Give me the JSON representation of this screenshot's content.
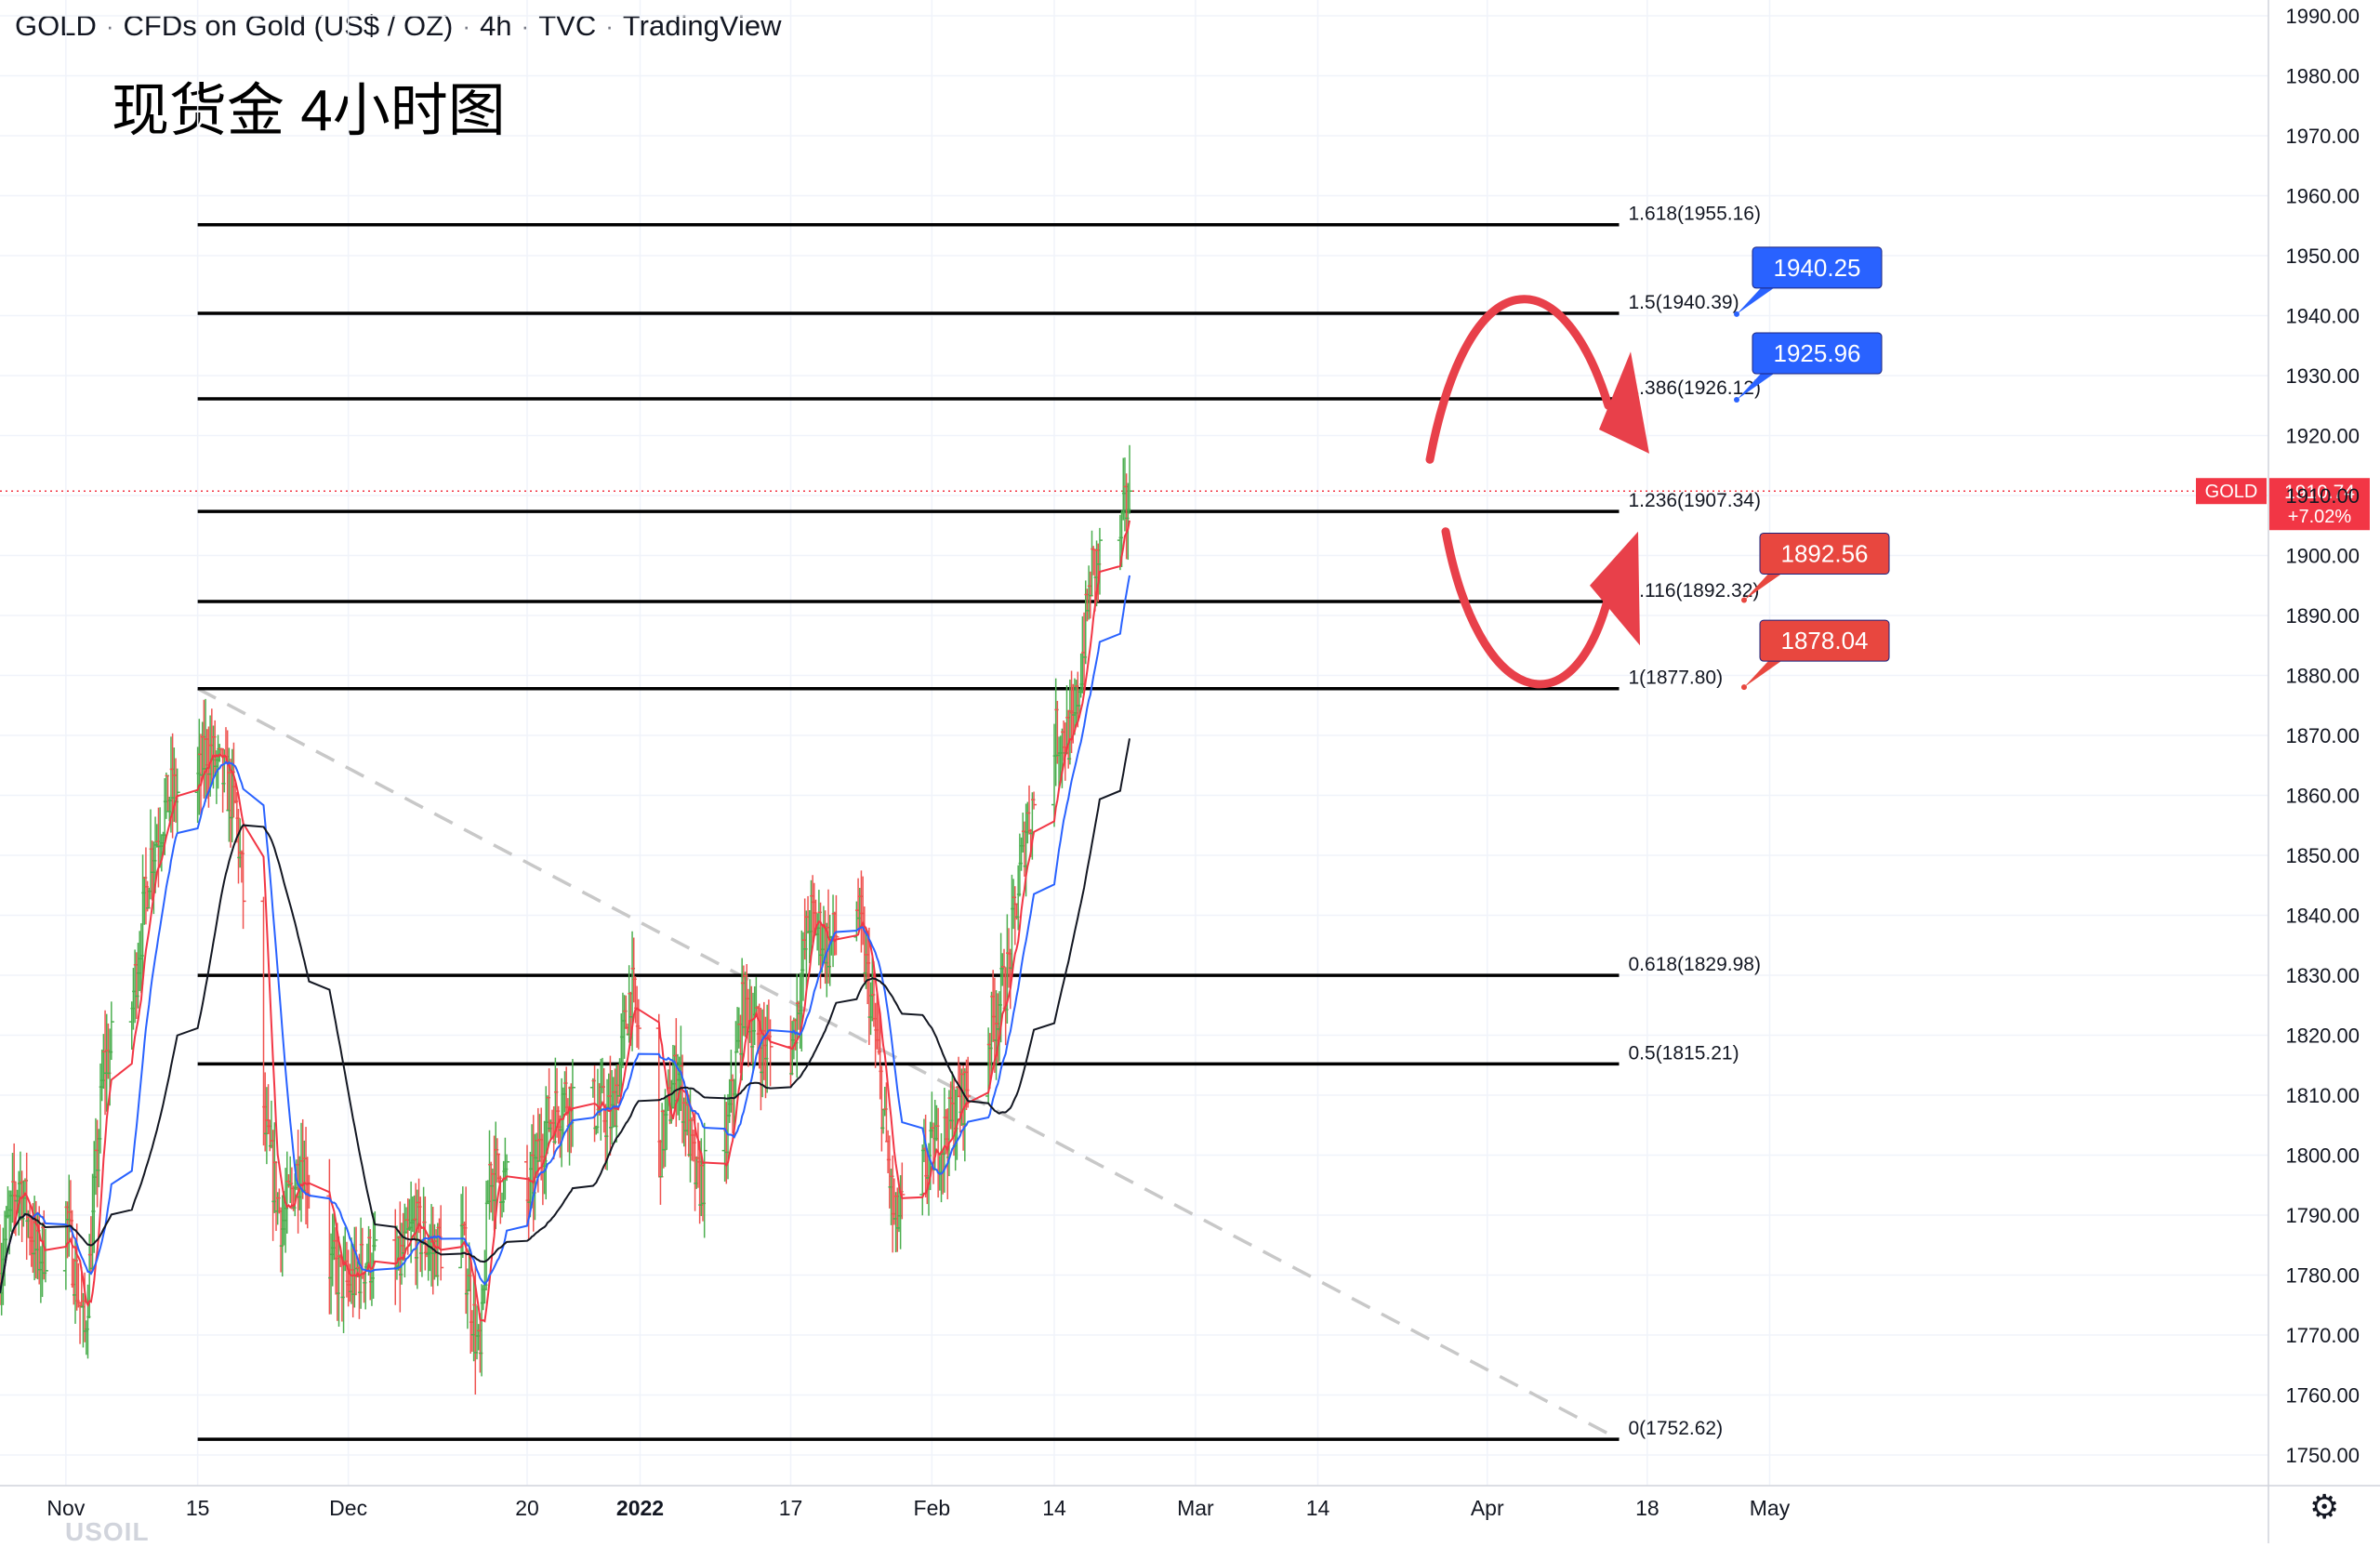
{
  "header": {
    "symbol": "GOLD",
    "description": "CFDs on Gold (US$ / OZ)",
    "interval": "4h",
    "exchange": "TVC",
    "source": "TradingView"
  },
  "chart_title": "现货金 4小时图",
  "watermark": "USOIL",
  "colors": {
    "up": "#26a69a",
    "bull_candle": "#4caf50",
    "bear_candle": "#ef5350",
    "ma_fast": "#2962ff",
    "ma_mid": "#f23645",
    "ma_slow": "#131722",
    "fib_line": "#000000",
    "trend_dashed": "#c8c8c8",
    "label_blue": "#2962ff",
    "label_red": "#e8473f",
    "arrow": "#e8404a",
    "price_tag": "#f23645"
  },
  "chart_data": {
    "type": "candlestick",
    "symbol": "GOLD",
    "timeframe": "4h",
    "ylim": [
      1745,
      1992
    ],
    "y_ticks": [
      "1990.00",
      "1980.00",
      "1970.00",
      "1960.00",
      "1950.00",
      "1940.00",
      "1930.00",
      "1920.00",
      "1910.00",
      "1900.00",
      "1890.00",
      "1880.00",
      "1870.00",
      "1860.00",
      "1850.00",
      "1840.00",
      "1830.00",
      "1820.00",
      "1810.00",
      "1800.00",
      "1790.00",
      "1780.00",
      "1770.00",
      "1760.00",
      "1750.00"
    ],
    "x_ticks": [
      {
        "label": "Nov",
        "bold": false
      },
      {
        "label": "15",
        "bold": false
      },
      {
        "label": "Dec",
        "bold": false
      },
      {
        "label": "20",
        "bold": false
      },
      {
        "label": "2022",
        "bold": true
      },
      {
        "label": "17",
        "bold": false
      },
      {
        "label": "Feb",
        "bold": false
      },
      {
        "label": "14",
        "bold": false
      },
      {
        "label": "Mar",
        "bold": false
      },
      {
        "label": "14",
        "bold": false
      },
      {
        "label": "Apr",
        "bold": false
      },
      {
        "label": "18",
        "bold": false
      },
      {
        "label": "May",
        "bold": false
      }
    ],
    "x_tick_dates": [
      "2021-11-01",
      "2021-11-15",
      "2021-12-01",
      "2021-12-20",
      "2022-01-01",
      "2022-01-17",
      "2022-02-01",
      "2022-02-14",
      "2022-03-01",
      "2022-03-14",
      "2022-04-01",
      "2022-04-18",
      "2022-05-01"
    ],
    "price_path": [
      [
        "2021-10-25",
        1782
      ],
      [
        "2021-10-27",
        1796
      ],
      [
        "2021-10-29",
        1783
      ],
      [
        "2021-11-01",
        1790
      ],
      [
        "2021-11-03",
        1770
      ],
      [
        "2021-11-05",
        1815
      ],
      [
        "2021-11-08",
        1825
      ],
      [
        "2021-11-10",
        1850
      ],
      [
        "2021-11-12",
        1860
      ],
      [
        "2021-11-15",
        1862
      ],
      [
        "2021-11-16",
        1868
      ],
      [
        "2021-11-18",
        1862
      ],
      [
        "2021-11-19",
        1858
      ],
      [
        "2021-11-22",
        1805
      ],
      [
        "2021-11-24",
        1788
      ],
      [
        "2021-11-26",
        1800
      ],
      [
        "2021-11-29",
        1782
      ],
      [
        "2021-12-01",
        1778
      ],
      [
        "2021-12-03",
        1783
      ],
      [
        "2021-12-06",
        1780
      ],
      [
        "2021-12-08",
        1788
      ],
      [
        "2021-12-10",
        1784
      ],
      [
        "2021-12-13",
        1787
      ],
      [
        "2021-12-15",
        1765
      ],
      [
        "2021-12-16",
        1798
      ],
      [
        "2021-12-20",
        1792
      ],
      [
        "2021-12-22",
        1805
      ],
      [
        "2021-12-24",
        1810
      ],
      [
        "2021-12-27",
        1808
      ],
      [
        "2021-12-29",
        1806
      ],
      [
        "2021-12-31",
        1828
      ],
      [
        "2022-01-03",
        1800
      ],
      [
        "2022-01-05",
        1815
      ],
      [
        "2022-01-07",
        1795
      ],
      [
        "2022-01-10",
        1800
      ],
      [
        "2022-01-12",
        1826
      ],
      [
        "2022-01-14",
        1818
      ],
      [
        "2022-01-17",
        1817
      ],
      [
        "2022-01-19",
        1840
      ],
      [
        "2022-01-21",
        1835
      ],
      [
        "2022-01-24",
        1842
      ],
      [
        "2022-01-26",
        1820
      ],
      [
        "2022-01-28",
        1788
      ],
      [
        "2022-02-01",
        1800
      ],
      [
        "2022-02-03",
        1805
      ],
      [
        "2022-02-07",
        1820
      ],
      [
        "2022-02-09",
        1830
      ],
      [
        "2022-02-11",
        1855
      ],
      [
        "2022-02-14",
        1870
      ],
      [
        "2022-02-16",
        1870
      ],
      [
        "2022-02-18",
        1898
      ],
      [
        "2022-02-21",
        1903
      ],
      [
        "2022-02-22",
        1910.74
      ]
    ],
    "moving_averages": [
      {
        "color": "#2962ff",
        "description": "fast MA"
      },
      {
        "color": "#f23645",
        "description": "mid MA"
      },
      {
        "color": "#131722",
        "description": "slow MA"
      }
    ],
    "fibonacci": [
      {
        "label": "1.618(1955.16)",
        "value": 1955.16
      },
      {
        "label": "1.5(1940.39)",
        "value": 1940.39
      },
      {
        "label": "1.386(1926.12)",
        "value": 1926.12
      },
      {
        "label": "1.236(1907.34)",
        "value": 1907.34
      },
      {
        "label": "1.116(1892.32)",
        "value": 1892.32
      },
      {
        "label": "1(1877.80)",
        "value": 1877.8
      },
      {
        "label": "0.618(1829.98)",
        "value": 1829.98
      },
      {
        "label": "0.5(1815.21)",
        "value": 1815.21
      },
      {
        "label": "0(1752.62)",
        "value": 1752.62
      }
    ],
    "fib_start_date": "2021-11-15",
    "fib_end_date": "2022-04-15",
    "trendline": {
      "from": [
        "2021-11-15",
        1877.8
      ],
      "to": [
        "2022-04-15",
        1752.6
      ],
      "style": "dashed"
    },
    "price_labels": [
      {
        "text": "1940.25",
        "value": 1940.25,
        "color": "blue"
      },
      {
        "text": "1925.96",
        "value": 1925.96,
        "color": "blue"
      },
      {
        "text": "1892.56",
        "value": 1892.56,
        "color": "red"
      },
      {
        "text": "1878.04",
        "value": 1878.04,
        "color": "red"
      }
    ],
    "current_price": {
      "symbol": "GOLD",
      "price": "1910.74",
      "change": "+7.02%",
      "value": 1910.74
    },
    "annotations": [
      {
        "type": "curved-arrow",
        "direction": "up-then-down",
        "from_value": 1918,
        "peak": 1940,
        "to_value": 1921
      },
      {
        "type": "curved-arrow",
        "direction": "down-then-up",
        "from_value": 1904,
        "trough": 1884,
        "to_value": 1903
      }
    ],
    "grid": true,
    "legend": "none"
  }
}
